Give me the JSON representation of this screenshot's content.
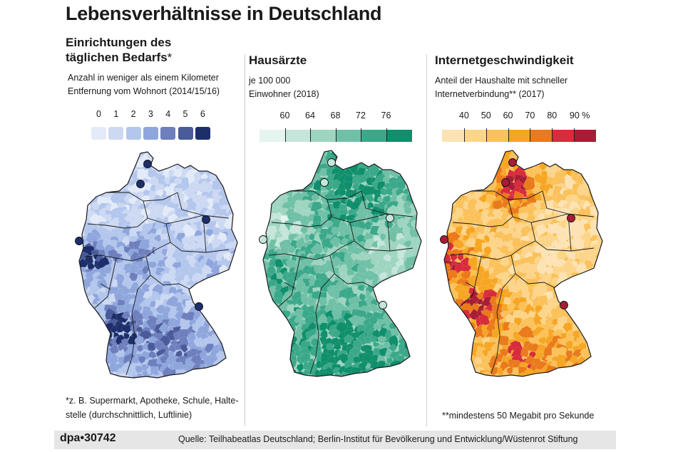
{
  "title": "Lebensverhältnisse in Deutschland",
  "panels": [
    {
      "title_line1": "Einrichtungen des",
      "title_line2": "täglichen Bedarfs",
      "title_mark": "*",
      "desc_line1": "Anzahl  in weniger als einem Kilometer",
      "desc_line2": "Entfernung vom Wohnort (2014/15/16)",
      "legend": {
        "labels": [
          "0",
          "1",
          "2",
          "3",
          "4",
          "5",
          "6"
        ],
        "colors": [
          "#e3eaf8",
          "#cdd9f3",
          "#b3c6ec",
          "#8fa6dd",
          "#6e7fbe",
          "#4a5b9a",
          "#1d2f6a"
        ]
      },
      "footnote_line1": "*z. B. Supermarkt, Apotheke, Schule, Halte-",
      "footnote_line2": "stelle (durchschnittlich, Luftlinie)"
    },
    {
      "title_line1": "Hausärzte",
      "desc_line1": "je 100 000",
      "desc_line2": "Einwohner (2018)",
      "legend": {
        "labels": [
          "60",
          "64",
          "68",
          "72",
          "76"
        ],
        "colors": [
          "#e6f4ef",
          "#c5e6da",
          "#9ed5c1",
          "#6fc0a6",
          "#3ba88a",
          "#0f8f6c"
        ]
      }
    },
    {
      "title_line1": "Internetgeschwindigkeit",
      "desc_line1": "Anteil der Haushalte mit schneller",
      "desc_line2": "Internetverbindung** (2017)",
      "legend": {
        "labels": [
          "40",
          "50",
          "60",
          "70",
          "80",
          "90 %"
        ],
        "colors": [
          "#fde3b4",
          "#fcd58a",
          "#fbc15a",
          "#f6a623",
          "#ea7a1b",
          "#d82b3c",
          "#a81d36"
        ]
      },
      "footnote_line1": "**mindestens 50 Megabit pro Sekunde"
    }
  ],
  "footer": {
    "agency": "dpa",
    "bullet": "•",
    "number": "30742",
    "source": "Quelle: Teilhabeatlas Deutschland; Berlin-Institut für Bevölkerung und Entwicklung/Wüstenrot Stiftung"
  }
}
